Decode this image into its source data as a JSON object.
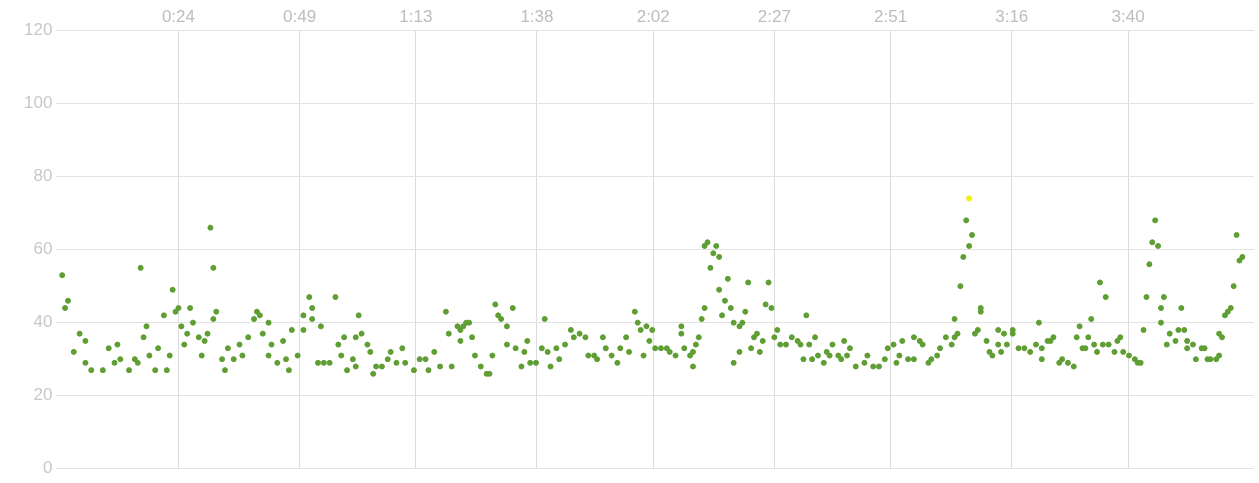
{
  "chart_data": {
    "type": "scatter",
    "marker": "circle",
    "grid": true,
    "legend": false,
    "xlim": [
      -0.02,
      4.1
    ],
    "xticks": [
      {
        "value": 0.4,
        "label": "0:24"
      },
      {
        "value": 0.8167,
        "label": "0:49"
      },
      {
        "value": 1.2167,
        "label": "1:13"
      },
      {
        "value": 1.6333,
        "label": "1:38"
      },
      {
        "value": 2.0333,
        "label": "2:02"
      },
      {
        "value": 2.45,
        "label": "2:27"
      },
      {
        "value": 2.85,
        "label": "2:51"
      },
      {
        "value": 3.2667,
        "label": "3:16"
      },
      {
        "value": 3.6667,
        "label": "3:40"
      }
    ],
    "ylim": [
      0,
      120
    ],
    "yticks": [
      0,
      20,
      40,
      60,
      80,
      100,
      120
    ],
    "series": [
      {
        "color": "#5f9e32",
        "x": [
          0.0,
          0.01,
          0.02,
          0.04,
          0.06,
          0.08,
          0.08,
          0.1,
          0.14,
          0.16,
          0.18,
          0.19,
          0.2,
          0.23,
          0.25,
          0.26,
          0.27,
          0.28,
          0.29,
          0.3,
          0.32,
          0.33,
          0.35,
          0.36,
          0.37,
          0.38,
          0.39,
          0.4,
          0.41,
          0.42,
          0.43,
          0.44,
          0.45,
          0.47,
          0.48,
          0.49,
          0.5,
          0.51,
          0.52,
          0.52,
          0.53,
          0.55,
          0.56,
          0.57,
          0.59,
          0.61,
          0.62,
          0.64,
          0.66,
          0.67,
          0.68,
          0.69,
          0.71,
          0.71,
          0.72,
          0.74,
          0.76,
          0.77,
          0.78,
          0.79,
          0.81,
          0.83,
          0.83,
          0.85,
          0.86,
          0.86,
          0.88,
          0.89,
          0.9,
          0.92,
          0.94,
          0.95,
          0.96,
          0.97,
          0.98,
          1.0,
          1.01,
          1.01,
          1.02,
          1.03,
          1.05,
          1.06,
          1.07,
          1.08,
          1.1,
          1.12,
          1.13,
          1.15,
          1.17,
          1.18,
          1.21,
          1.23,
          1.25,
          1.26,
          1.28,
          1.3,
          1.32,
          1.33,
          1.34,
          1.36,
          1.37,
          1.37,
          1.38,
          1.39,
          1.4,
          1.41,
          1.42,
          1.44,
          1.46,
          1.47,
          1.48,
          1.49,
          1.5,
          1.51,
          1.53,
          1.53,
          1.55,
          1.56,
          1.58,
          1.59,
          1.6,
          1.61,
          1.63,
          1.65,
          1.66,
          1.67,
          1.68,
          1.7,
          1.71,
          1.73,
          1.75,
          1.76,
          1.78,
          1.8,
          1.81,
          1.83,
          1.84,
          1.86,
          1.87,
          1.89,
          1.91,
          1.92,
          1.94,
          1.95,
          1.97,
          1.98,
          1.99,
          2.0,
          2.01,
          2.02,
          2.03,
          2.04,
          2.06,
          2.08,
          2.09,
          2.11,
          2.13,
          2.13,
          2.14,
          2.16,
          2.17,
          2.17,
          2.18,
          2.19,
          2.2,
          2.21,
          2.21,
          2.22,
          2.23,
          2.24,
          2.25,
          2.26,
          2.26,
          2.27,
          2.28,
          2.29,
          2.3,
          2.31,
          2.31,
          2.33,
          2.33,
          2.34,
          2.35,
          2.36,
          2.37,
          2.38,
          2.39,
          2.4,
          2.41,
          2.42,
          2.43,
          2.44,
          2.45,
          2.46,
          2.47,
          2.49,
          2.51,
          2.53,
          2.54,
          2.55,
          2.56,
          2.57,
          2.58,
          2.59,
          2.6,
          2.62,
          2.63,
          2.64,
          2.65,
          2.67,
          2.68,
          2.69,
          2.7,
          2.71,
          2.73,
          2.76,
          2.77,
          2.79,
          2.81,
          2.83,
          2.84,
          2.86,
          2.87,
          2.88,
          2.89,
          2.91,
          2.93,
          2.93,
          2.95,
          2.96,
          2.98,
          2.99,
          3.01,
          3.02,
          3.04,
          3.06,
          3.07,
          3.07,
          3.08,
          3.09,
          3.1,
          3.11,
          3.12,
          3.13,
          3.14,
          3.15,
          3.16,
          3.16,
          3.18,
          3.19,
          3.2,
          3.22,
          3.22,
          3.23,
          3.24,
          3.25,
          3.27,
          3.27,
          3.29,
          3.31,
          3.33,
          3.35,
          3.36,
          3.37,
          3.37,
          3.39,
          3.4,
          3.41,
          3.43,
          3.44,
          3.46,
          3.48,
          3.49,
          3.5,
          3.51,
          3.52,
          3.53,
          3.54,
          3.55,
          3.56,
          3.57,
          3.58,
          3.59,
          3.6,
          3.62,
          3.63,
          3.64,
          3.65,
          3.67,
          3.69,
          3.7,
          3.71,
          3.72,
          3.73,
          3.74,
          3.75,
          3.76,
          3.77,
          3.78,
          3.78,
          3.79,
          3.8,
          3.81,
          3.83,
          3.84,
          3.85,
          3.86,
          3.87,
          3.87,
          3.89,
          3.9,
          3.92,
          3.93,
          3.94,
          3.95,
          3.97,
          3.98,
          3.98,
          3.99,
          4.0,
          4.01,
          4.02,
          4.03,
          4.04,
          4.05,
          4.06
        ],
        "values": [
          53,
          44,
          46,
          32,
          37,
          29,
          35,
          27,
          27,
          33,
          29,
          34,
          30,
          27,
          30,
          29,
          55,
          36,
          39,
          31,
          27,
          33,
          42,
          27,
          31,
          49,
          43,
          44,
          39,
          34,
          37,
          44,
          40,
          36,
          31,
          35,
          37,
          66,
          55,
          41,
          43,
          30,
          27,
          33,
          30,
          34,
          31,
          36,
          41,
          43,
          42,
          37,
          31,
          40,
          34,
          29,
          35,
          30,
          27,
          38,
          31,
          38,
          42,
          47,
          41,
          44,
          29,
          39,
          29,
          29,
          47,
          34,
          31,
          36,
          27,
          30,
          36,
          28,
          42,
          37,
          34,
          32,
          26,
          28,
          28,
          30,
          32,
          29,
          33,
          29,
          27,
          30,
          30,
          27,
          32,
          28,
          43,
          37,
          28,
          39,
          38,
          35,
          39,
          40,
          40,
          36,
          31,
          28,
          26,
          26,
          31,
          45,
          42,
          41,
          34,
          39,
          44,
          33,
          28,
          32,
          35,
          29,
          29,
          33,
          41,
          32,
          28,
          33,
          30,
          34,
          38,
          36,
          37,
          36,
          31,
          31,
          30,
          36,
          33,
          31,
          29,
          33,
          36,
          32,
          43,
          40,
          38,
          31,
          39,
          35,
          38,
          33,
          33,
          33,
          32,
          31,
          37,
          39,
          33,
          31,
          28,
          32,
          34,
          36,
          41,
          44,
          61,
          62,
          55,
          59,
          61,
          58,
          49,
          42,
          46,
          52,
          44,
          29,
          40,
          39,
          32,
          40,
          43,
          51,
          33,
          36,
          37,
          32,
          35,
          45,
          51,
          44,
          36,
          38,
          34,
          34,
          36,
          35,
          34,
          30,
          42,
          34,
          30,
          36,
          31,
          29,
          32,
          31,
          34,
          31,
          30,
          35,
          31,
          33,
          28,
          29,
          31,
          28,
          28,
          30,
          33,
          34,
          29,
          31,
          35,
          30,
          30,
          36,
          35,
          34,
          29,
          30,
          31,
          33,
          36,
          34,
          36,
          41,
          37,
          50,
          58,
          68,
          61,
          64,
          37,
          38,
          44,
          43,
          35,
          32,
          31,
          34,
          38,
          32,
          37,
          34,
          38,
          37,
          33,
          33,
          32,
          34,
          40,
          33,
          30,
          35,
          35,
          36,
          29,
          30,
          29,
          28,
          36,
          39,
          33,
          33,
          36,
          41,
          34,
          32,
          51,
          34,
          47,
          34,
          32,
          35,
          36,
          32,
          31,
          30,
          29,
          29,
          38,
          47,
          56,
          62,
          68,
          61,
          44,
          40,
          47,
          34,
          37,
          35,
          38,
          44,
          38,
          35,
          33,
          34,
          30,
          33,
          33,
          30,
          30,
          30,
          31,
          37,
          36,
          42,
          43,
          44,
          50,
          64,
          57,
          58
        ]
      },
      {
        "color": "#f2f200",
        "x": [
          3.12
        ],
        "values": [
          74
        ]
      }
    ]
  }
}
